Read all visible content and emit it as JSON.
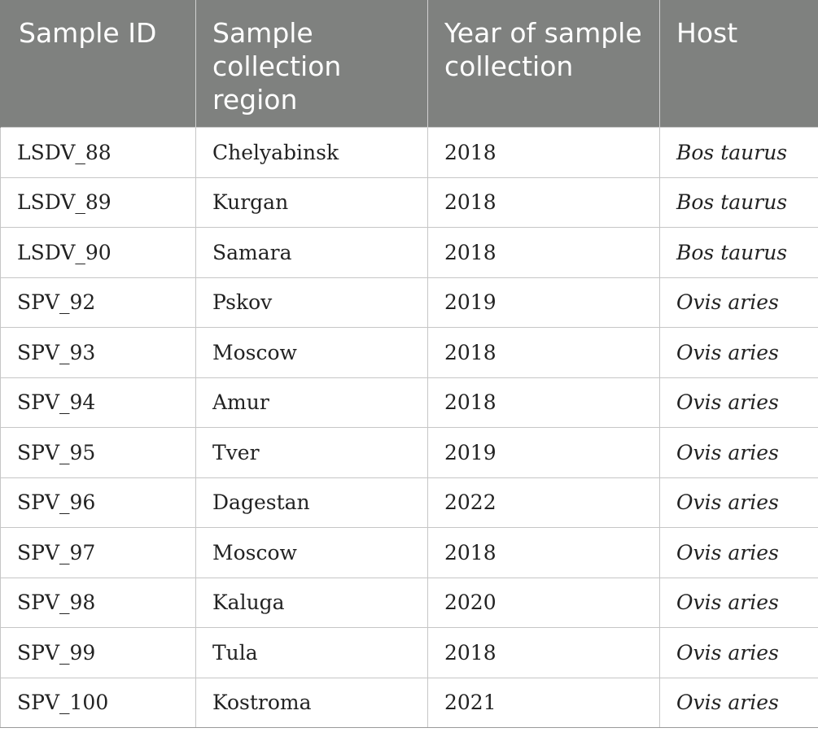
{
  "table": {
    "headers": [
      "Sample ID",
      "Sample collection region",
      "Year of sample collection",
      "Host"
    ],
    "header_bg": "#7f817f",
    "rows": [
      [
        "LSDV_88",
        "Chelyabinsk",
        "2018",
        "Bos taurus"
      ],
      [
        "LSDV_89",
        "Kurgan",
        "2018",
        "Bos taurus"
      ],
      [
        "LSDV_90",
        "Samara",
        "2018",
        "Bos taurus"
      ],
      [
        "SPV_92",
        "Pskov",
        "2019",
        "Ovis aries"
      ],
      [
        "SPV_93",
        "Moscow",
        "2018",
        "Ovis aries"
      ],
      [
        "SPV_94",
        "Amur",
        "2018",
        "Ovis aries"
      ],
      [
        "SPV_95",
        "Tver",
        "2019",
        "Ovis aries"
      ],
      [
        "SPV_96",
        "Dagestan",
        "2022",
        "Ovis aries"
      ],
      [
        "SPV_97",
        "Moscow",
        "2018",
        "Ovis aries"
      ],
      [
        "SPV_98",
        "Kaluga",
        "2020",
        "Ovis aries"
      ],
      [
        "SPV_99",
        "Tula",
        "2018",
        "Ovis aries"
      ],
      [
        "SPV_100",
        "Kostroma",
        "2021",
        "Ovis aries"
      ]
    ]
  }
}
